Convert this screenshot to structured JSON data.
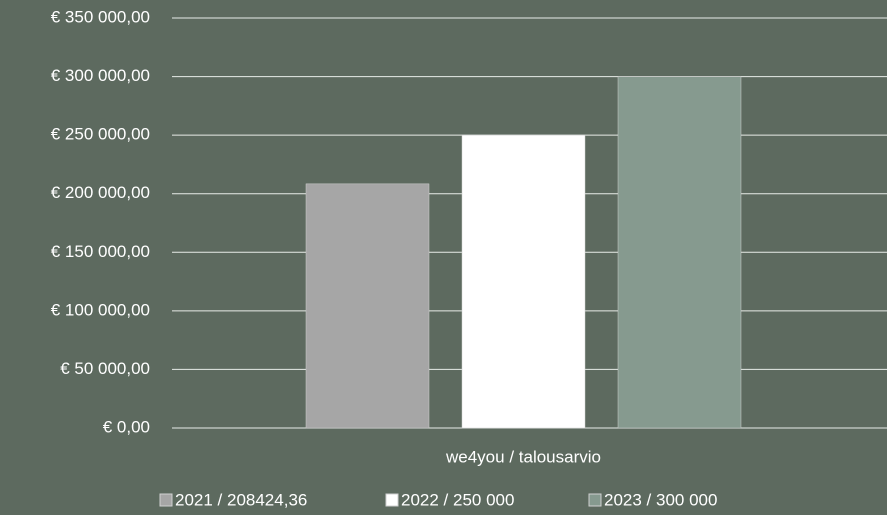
{
  "chart_data": {
    "type": "bar",
    "categories": [
      "we4you / talousarvio"
    ],
    "series": [
      {
        "name": "2021 / 208424,36",
        "color": "#a6a6a6",
        "values": [
          208424.36
        ]
      },
      {
        "name": "2022 / 250 000",
        "color": "#ffffff",
        "values": [
          250000
        ]
      },
      {
        "name": "2023 / 300 000",
        "color": "#869a8f",
        "values": [
          300000
        ]
      }
    ],
    "ylim": [
      0,
      350000
    ],
    "yticks": [
      {
        "value": 0,
        "label": "€  0,00"
      },
      {
        "value": 50000,
        "label": "€ 50 000,00"
      },
      {
        "value": 100000,
        "label": "€ 100 000,00"
      },
      {
        "value": 150000,
        "label": "€ 150 000,00"
      },
      {
        "value": 200000,
        "label": "€ 200 000,00"
      },
      {
        "value": 250000,
        "label": "€ 250 000,00"
      },
      {
        "value": 300000,
        "label": "€ 300 000,00"
      },
      {
        "value": 350000,
        "label": "€ 350 000,00"
      }
    ],
    "grid": true,
    "legend": "bottom"
  }
}
